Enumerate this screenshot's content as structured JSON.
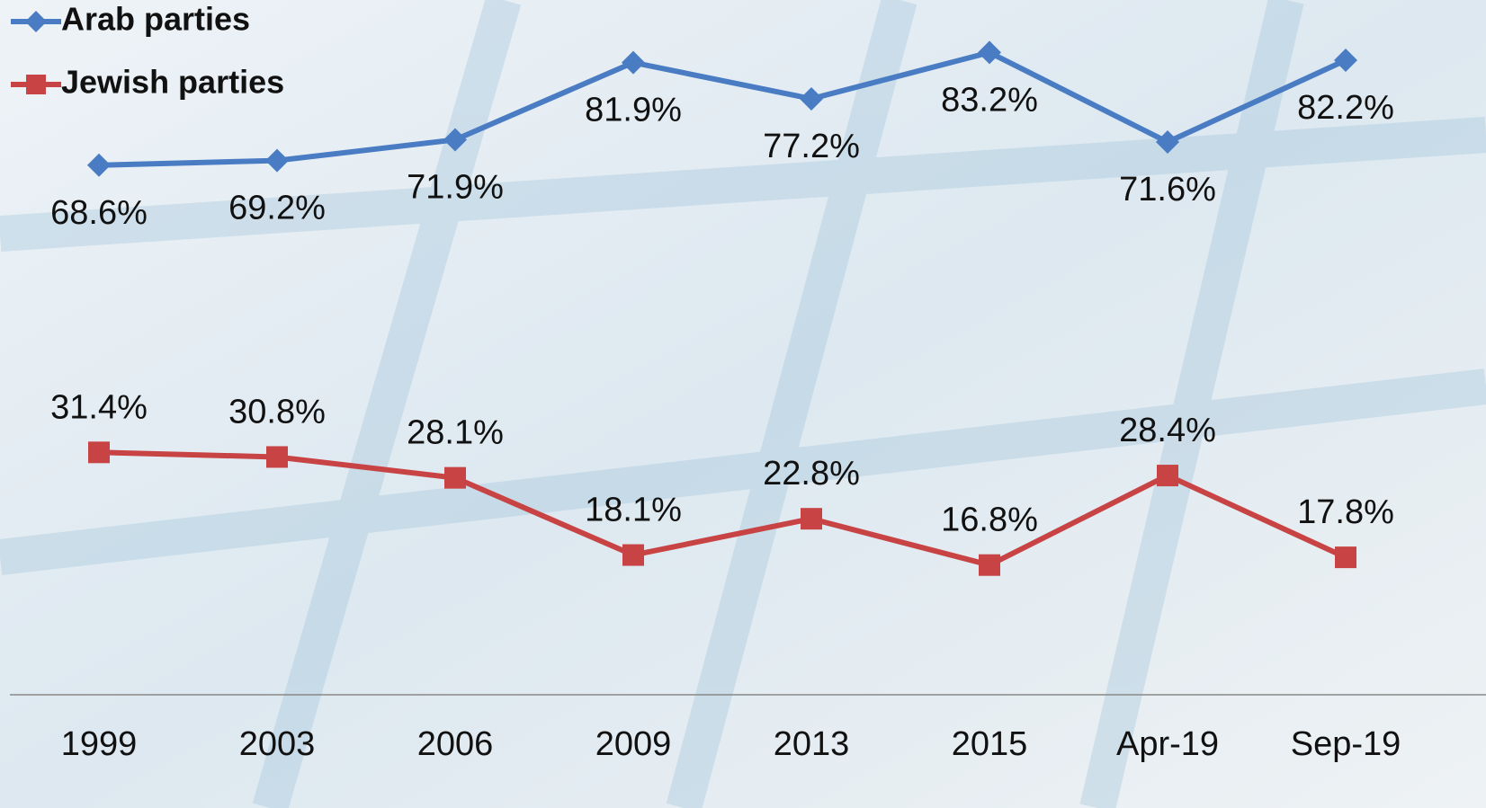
{
  "chart_data": {
    "type": "line",
    "categories": [
      "1999",
      "2003",
      "2006",
      "2009",
      "2013",
      "2015",
      "Apr-19",
      "Sep-19"
    ],
    "series": [
      {
        "name": "Arab parties",
        "color": "#4a7cc4",
        "marker": "diamond",
        "label_position": "below",
        "values": [
          68.6,
          69.2,
          71.9,
          81.9,
          77.2,
          83.2,
          71.6,
          82.2
        ],
        "value_labels": [
          "68.6%",
          "69.2%",
          "71.9%",
          "81.9%",
          "77.2%",
          "83.2%",
          "71.6%",
          "82.2%"
        ]
      },
      {
        "name": "Jewish parties",
        "color": "#c84444",
        "marker": "square",
        "label_position": "above",
        "values": [
          31.4,
          30.8,
          28.1,
          18.1,
          22.8,
          16.8,
          28.4,
          17.8
        ],
        "value_labels": [
          "31.4%",
          "30.8%",
          "28.1%",
          "18.1%",
          "22.8%",
          "16.8%",
          "28.4%",
          "17.8%"
        ]
      }
    ],
    "ylim": [
      0,
      90
    ],
    "legend": "top-left"
  }
}
